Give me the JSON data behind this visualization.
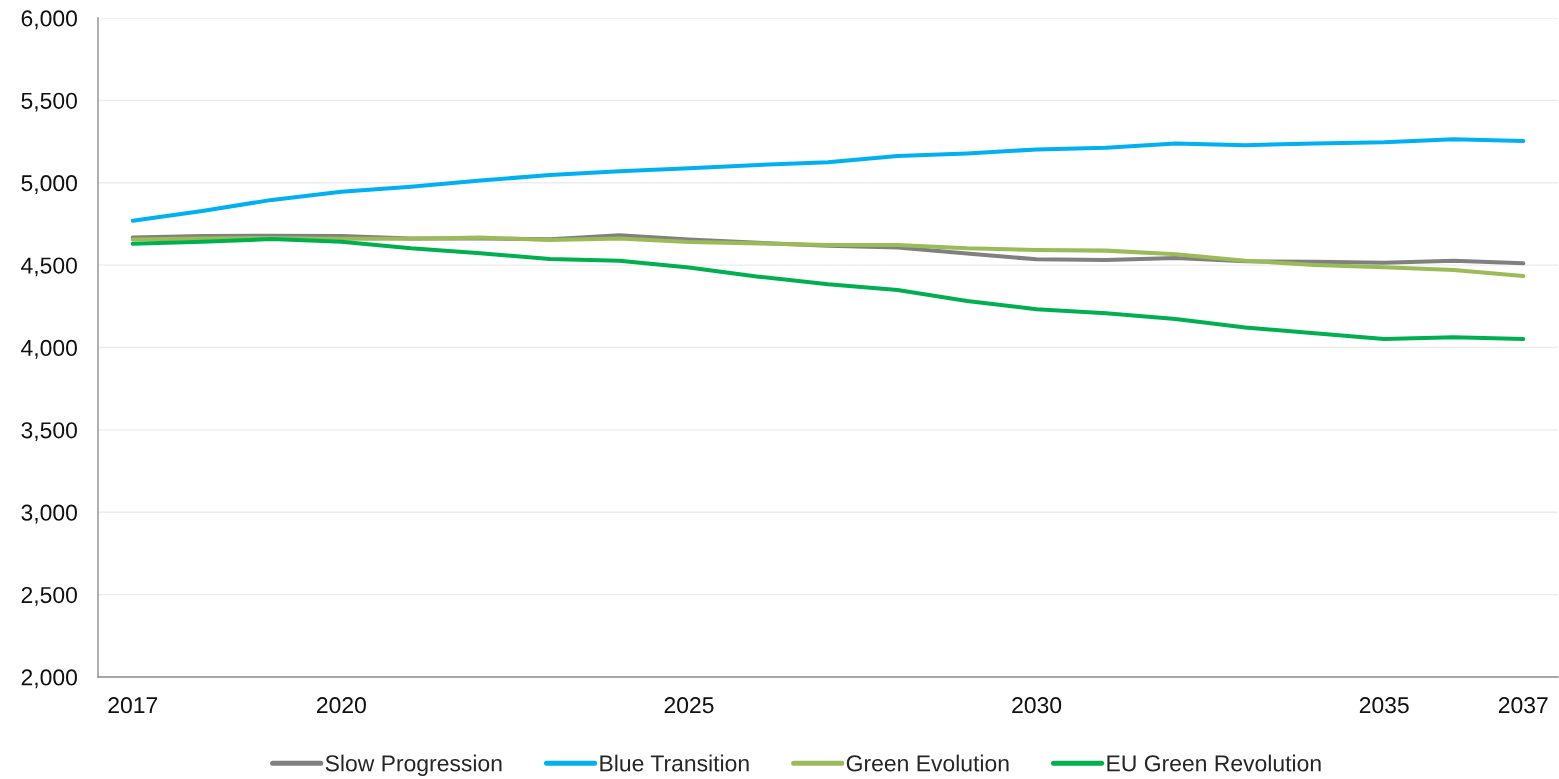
{
  "chart_data": {
    "type": "line",
    "categories": [
      "2017",
      null,
      null,
      "2020",
      null,
      null,
      null,
      null,
      "2025",
      null,
      null,
      null,
      null,
      "2030",
      null,
      null,
      null,
      null,
      "2035",
      null,
      "2037"
    ],
    "series": [
      {
        "name": "Slow Progression",
        "color": "#808080",
        "values": [
          4667,
          4677,
          4678,
          4677,
          4662,
          4662,
          4657,
          4682,
          4656,
          4635,
          4617,
          4607,
          4571,
          4535,
          4531,
          4543,
          4523,
          4521,
          4515,
          4527,
          4511
        ]
      },
      {
        "name": "Blue Transition",
        "color": "#00b0f0",
        "values": [
          4770,
          4829,
          4896,
          4946,
          4976,
          5013,
          5047,
          5070,
          5088,
          5108,
          5124,
          5162,
          5178,
          5202,
          5212,
          5238,
          5228,
          5238,
          5246,
          5264,
          5254
        ]
      },
      {
        "name": "Green Evolution",
        "color": "#9bbb59",
        "values": [
          4655,
          4662,
          4665,
          4660,
          4660,
          4667,
          4652,
          4662,
          4640,
          4632,
          4622,
          4622,
          4602,
          4592,
          4588,
          4566,
          4527,
          4501,
          4487,
          4471,
          4434
        ]
      },
      {
        "name": "EU Green Revolution",
        "color": "#00b050",
        "values": [
          4630,
          4642,
          4658,
          4642,
          4602,
          4572,
          4537,
          4527,
          4485,
          4430,
          4384,
          4349,
          4282,
          4232,
          4208,
          4173,
          4122,
          4086,
          4052,
          4062,
          4052
        ]
      }
    ],
    "ylim": [
      2000,
      6000
    ],
    "yticks": [
      {
        "value": 2000,
        "label": "2,000"
      },
      {
        "value": 2500,
        "label": "2,500"
      },
      {
        "value": 3000,
        "label": "3,000"
      },
      {
        "value": 3500,
        "label": "3,500"
      },
      {
        "value": 4000,
        "label": "4,000"
      },
      {
        "value": 4500,
        "label": "4,500"
      },
      {
        "value": 5000,
        "label": "5,000"
      },
      {
        "value": 5500,
        "label": "5,500"
      },
      {
        "value": 6000,
        "label": "6,000"
      }
    ],
    "grid": "y",
    "legend": "bottom",
    "marker": "none",
    "line_style": "solid"
  }
}
